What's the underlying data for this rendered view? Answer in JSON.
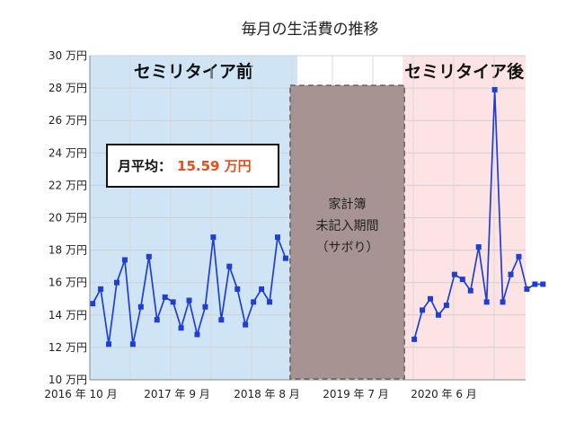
{
  "chart_data": {
    "type": "line",
    "title": "毎月の生活費の推移",
    "ylim": [
      10,
      30
    ],
    "y_ticks": [
      "10 万円",
      "12 万円",
      "14 万円",
      "16 万円",
      "18 万円",
      "20 万円",
      "22 万円",
      "24 万円",
      "26 万円",
      "28 万円",
      "30 万円"
    ],
    "x_ticks": [
      "2016 年 10 月",
      "2017 年 9 月",
      "2018 年 8 月",
      "2019 年 7 月",
      "2020 年 6 月"
    ],
    "grid": true,
    "series": [
      {
        "color": "#1f3fd4",
        "segments": [
          {
            "x": [
              "2016-10",
              "2016-11",
              "2016-12",
              "2017-01",
              "2017-02",
              "2017-03",
              "2017-04",
              "2017-05",
              "2017-06",
              "2017-07",
              "2017-08",
              "2017-09",
              "2017-10",
              "2017-11",
              "2017-12",
              "2018-01",
              "2018-02",
              "2018-03",
              "2018-04",
              "2018-05",
              "2018-06",
              "2018-07",
              "2018-08",
              "2018-09",
              "2018-10"
            ],
            "values": [
              14.7,
              15.6,
              12.2,
              16.0,
              17.4,
              12.2,
              14.5,
              17.6,
              13.7,
              15.1,
              14.8,
              13.2,
              14.9,
              12.8,
              14.5,
              18.8,
              13.7,
              17.0,
              15.6,
              13.4,
              14.8,
              15.6,
              14.8,
              18.8,
              17.5
            ]
          },
          {
            "x": [
              "2020-02",
              "2020-03",
              "2020-04",
              "2020-05",
              "2020-06",
              "2020-07",
              "2020-08",
              "2020-09",
              "2020-10",
              "2020-11",
              "2020-12",
              "2021-01",
              "2021-02",
              "2021-03",
              "2021-04",
              "2021-05",
              "2021-06"
            ],
            "values": [
              12.5,
              14.3,
              15.0,
              14.0,
              14.6,
              16.5,
              16.2,
              15.5,
              18.2,
              14.8,
              27.9,
              14.8,
              16.5,
              17.6,
              15.6,
              15.9,
              15.9
            ]
          }
        ]
      }
    ],
    "regions": [
      {
        "label": "セミリタイア前",
        "from": "2016-10",
        "to": "2018-11",
        "color": "#cfe5f5"
      },
      {
        "label": "セミリタイア後",
        "from": "2020-01",
        "to": "2021-06",
        "color": "#fde3e4"
      }
    ],
    "gap_annotation": {
      "lines": [
        "家計簿",
        "未記入期間",
        "（サボり）"
      ],
      "from": "2018-11",
      "to": "2020-01",
      "color": "#a89393"
    },
    "average_box": {
      "label": "月平均：",
      "value": "15.59 万円",
      "value_color": "#e84d1c"
    }
  }
}
